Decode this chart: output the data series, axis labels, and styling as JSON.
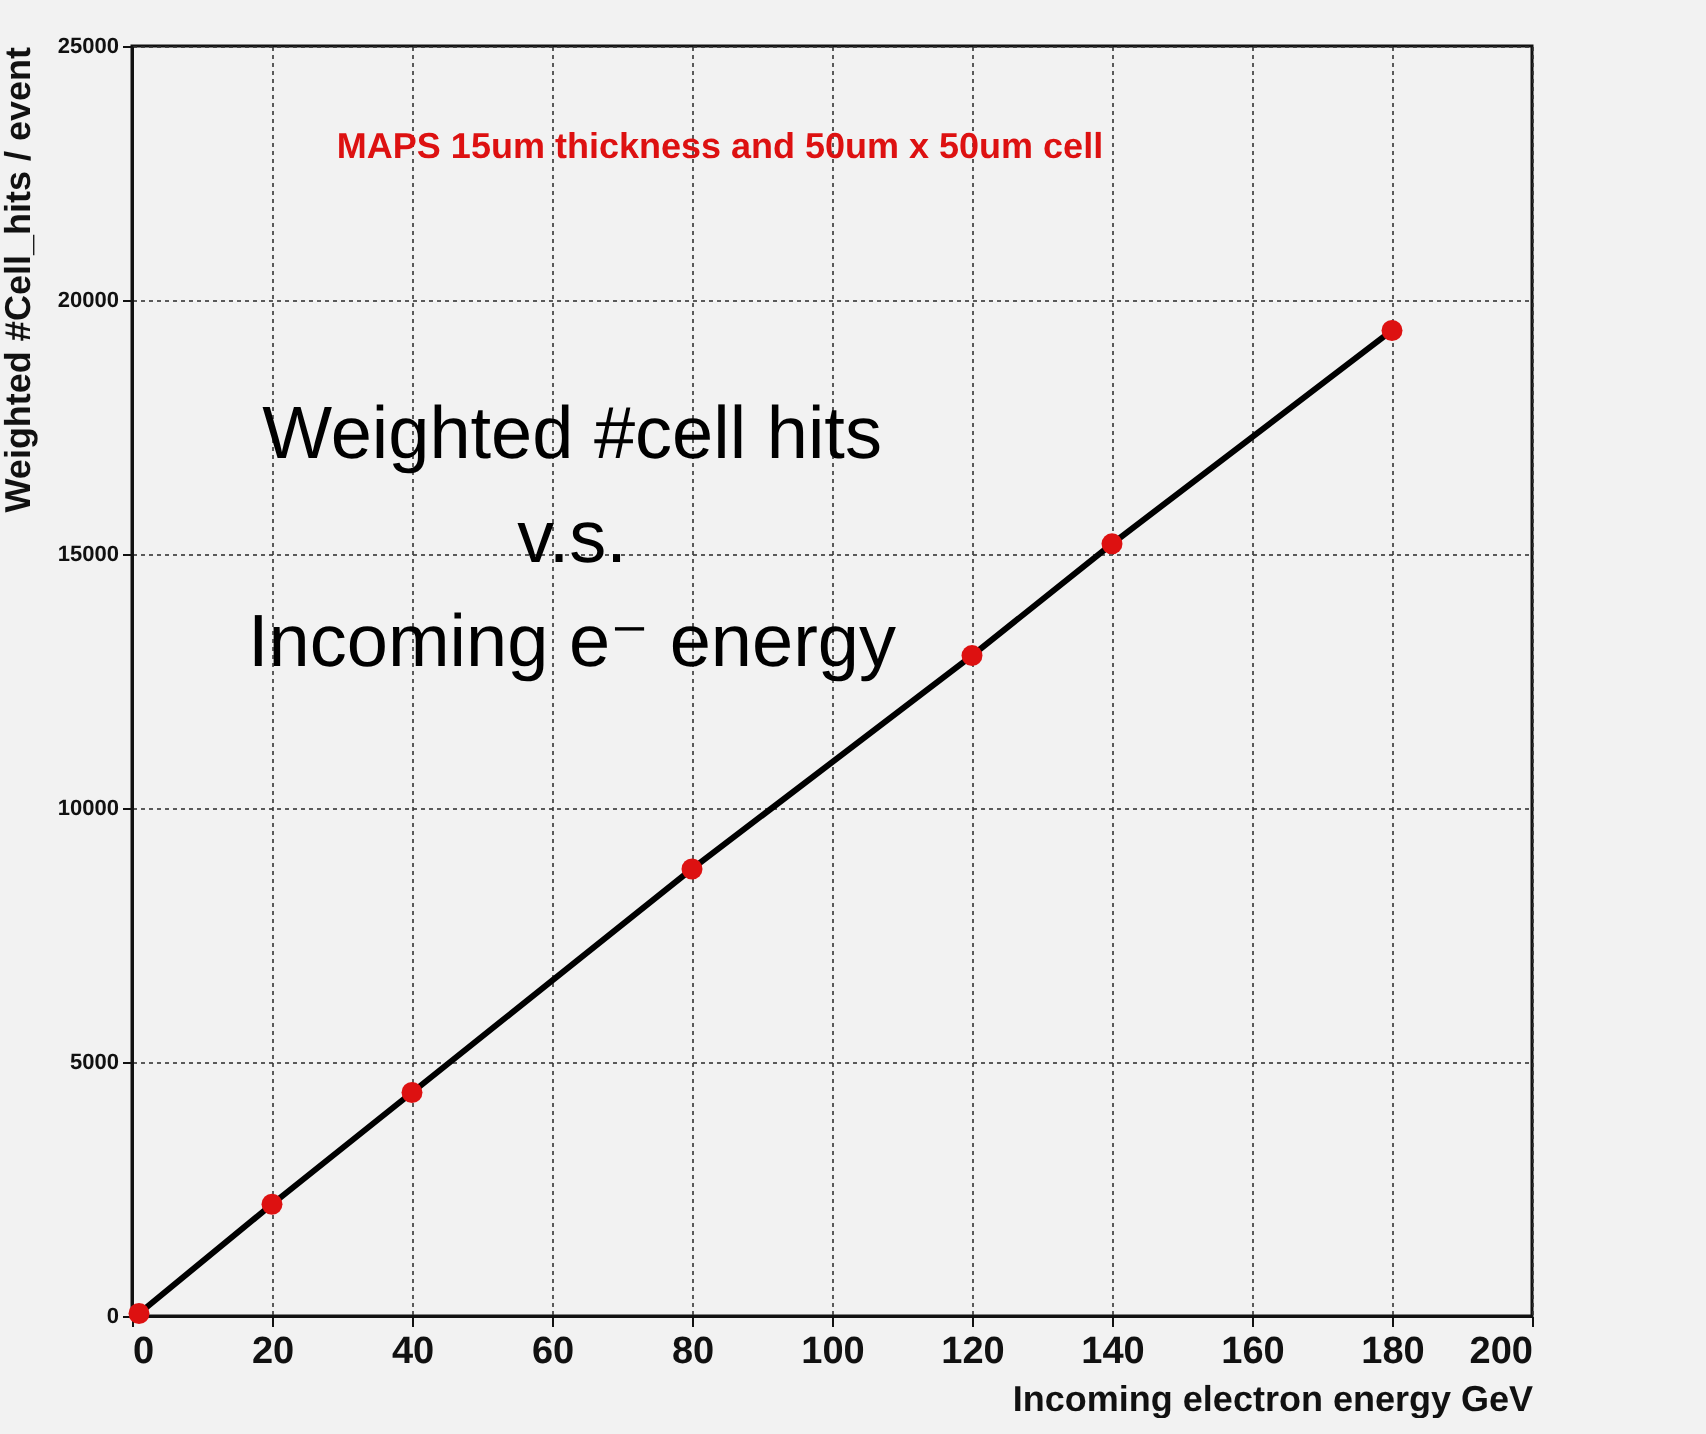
{
  "chart_data": {
    "type": "scatter",
    "xlabel": "Incoming electron energy GeV",
    "ylabel": "Weighted #Cell_hits / event",
    "x": [
      1,
      20,
      40,
      80,
      120,
      140,
      180
    ],
    "series": [
      {
        "type": "line",
        "color": "#000000",
        "marker": "none",
        "values": [
          50,
          2200,
          4400,
          8800,
          13000,
          15200,
          19400
        ]
      },
      {
        "color": "#dd1111",
        "marker": "circle",
        "values": [
          50,
          2200,
          4400,
          8800,
          13000,
          15200,
          19400
        ]
      }
    ],
    "xlim": [
      0,
      200
    ],
    "xticks": [
      0,
      20,
      40,
      60,
      80,
      100,
      120,
      140,
      160,
      180,
      200
    ],
    "ylim": [
      0,
      25000
    ],
    "yticks": [
      0,
      5000,
      10000,
      15000,
      20000,
      25000
    ],
    "grid": true,
    "annotations": [
      "MAPS 15um thickness and 50um x 50um cell",
      "Weighted #cell hits\nv.s.\nIncoming e⁻ energy"
    ]
  }
}
